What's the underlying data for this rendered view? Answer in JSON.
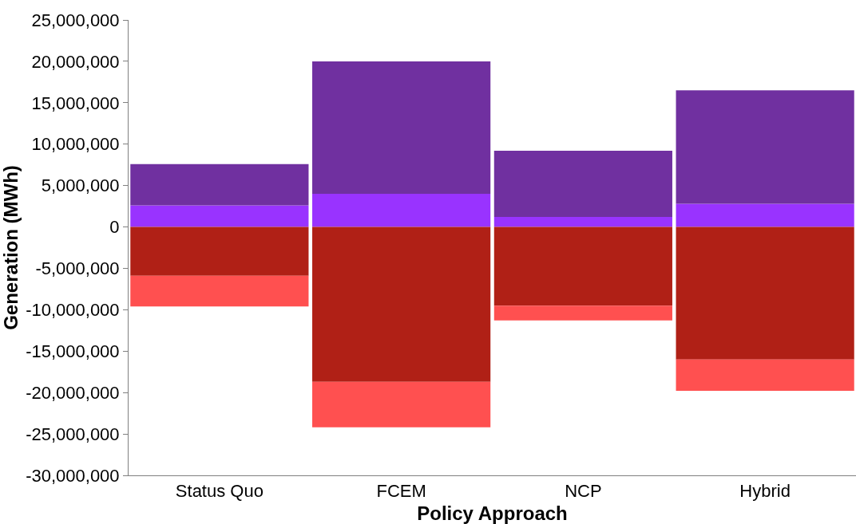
{
  "chart_data": {
    "type": "bar",
    "stacked": true,
    "xlabel": "Policy Approach",
    "ylabel": "Generation (MWh)",
    "categories": [
      "Status Quo",
      "FCEM",
      "NCP",
      "Hybrid"
    ],
    "series": [
      {
        "color": "#9933ff",
        "values": [
          2600000,
          4000000,
          1200000,
          2800000
        ]
      },
      {
        "color": "#7030a0",
        "values": [
          5000000,
          16000000,
          8000000,
          13700000
        ]
      },
      {
        "color": "#b02016",
        "values": [
          -5900000,
          -18700000,
          -9500000,
          -16000000
        ]
      },
      {
        "color": "#ff5050",
        "values": [
          -3700000,
          -5500000,
          -1800000,
          -3800000
        ]
      }
    ],
    "ylim": [
      -30000000,
      25000000
    ],
    "yticks": [
      {
        "value": -30000000,
        "label": "-30,000,000"
      },
      {
        "value": -25000000,
        "label": "-25,000,000"
      },
      {
        "value": -20000000,
        "label": "-20,000,000"
      },
      {
        "value": -15000000,
        "label": "-15,000,000"
      },
      {
        "value": -10000000,
        "label": "-10,000,000"
      },
      {
        "value": -5000000,
        "label": "-5,000,000"
      },
      {
        "value": 0,
        "label": "0"
      },
      {
        "value": 5000000,
        "label": "5,000,000"
      },
      {
        "value": 10000000,
        "label": "10,000,000"
      },
      {
        "value": 15000000,
        "label": "15,000,000"
      },
      {
        "value": 20000000,
        "label": "20,000,000"
      },
      {
        "value": 25000000,
        "label": "25,000,000"
      }
    ]
  }
}
